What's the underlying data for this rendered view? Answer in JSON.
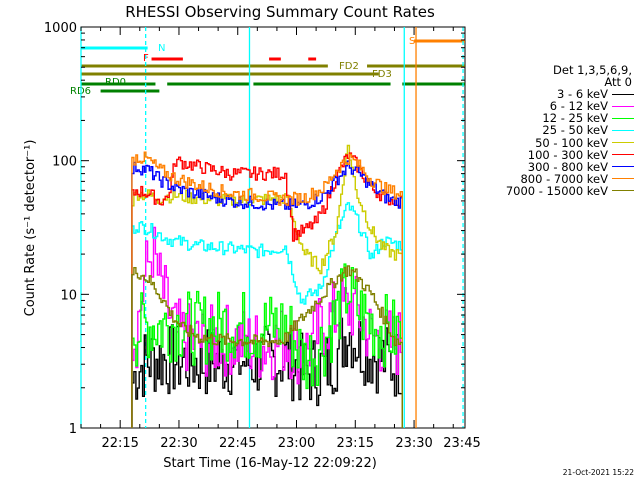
{
  "chart_data": {
    "type": "line",
    "title": "RHESSI Observing Summary Count Rates",
    "xlabel": "Start Time (16-May-12 22:09:22)",
    "ylabel": "Count Rate (s⁻¹ detector⁻¹)",
    "y_scale": "log",
    "ylim": [
      1,
      1000
    ],
    "y_ticks": [
      1,
      10,
      100,
      1000
    ],
    "y_tick_labels": [
      "1",
      "10",
      "100",
      "1000"
    ],
    "xlim_minutes": [
      -4,
      94
    ],
    "x_ticks_minutes": [
      6,
      21,
      36,
      51,
      66,
      81,
      96
    ],
    "x_tick_labels": [
      "22:15",
      "22:30",
      "22:45",
      "23:00",
      "23:15",
      "23:30",
      "23:45"
    ],
    "legend_header": [
      "Det 1,3,5,6,9,",
      "Att 0"
    ],
    "legend_position": "right",
    "series": [
      {
        "name": "3 - 6 keV",
        "color": "#000000",
        "x": [
          9,
          10,
          13,
          16,
          20,
          26,
          34,
          41,
          46,
          48,
          53,
          58,
          61,
          64,
          66,
          70,
          76,
          78
        ],
        "y": [
          2.2,
          2.7,
          3.2,
          3.3,
          3.2,
          3.1,
          3.2,
          3.1,
          3.2,
          3.3,
          2.6,
          2.8,
          3.5,
          5.5,
          4.5,
          3.6,
          3.0,
          3.2
        ]
      },
      {
        "name": "6 - 12 keV",
        "color": "#ff00ff",
        "x": [
          9,
          10,
          12,
          14,
          16,
          20,
          26,
          34,
          41,
          46,
          48,
          53,
          58,
          62,
          65,
          67,
          70,
          76,
          78
        ],
        "y": [
          4.8,
          5.2,
          13,
          22,
          12,
          5.0,
          4.3,
          4.6,
          4.1,
          4.3,
          4.6,
          3.6,
          6.0,
          7.5,
          8.0,
          7.0,
          4.8,
          4.2,
          4.6
        ]
      },
      {
        "name": "12 - 25 keV",
        "color": "#00ff00",
        "x": [
          9,
          10,
          13,
          16,
          20,
          26,
          34,
          41,
          46,
          48,
          53,
          58,
          61,
          64,
          66,
          70,
          76,
          78
        ],
        "y": [
          6.5,
          5.2,
          6.0,
          5.8,
          6.0,
          5.5,
          6.0,
          5.6,
          5.8,
          6.0,
          3.2,
          4.5,
          7.0,
          11,
          8.0,
          6.0,
          5.0,
          5.5
        ]
      },
      {
        "name": "25 - 50 keV",
        "color": "#00ffff",
        "x": [
          9,
          10,
          13,
          16,
          18,
          20,
          26,
          34,
          41,
          46,
          48,
          52,
          57,
          61,
          64,
          66,
          70,
          73,
          76,
          78
        ],
        "y": [
          30,
          33,
          31,
          28,
          26,
          25,
          23,
          22,
          21,
          22,
          23,
          9,
          11,
          28,
          46,
          38,
          19,
          25,
          24,
          23
        ]
      },
      {
        "name": "50 - 100 keV",
        "color": "#cccc00",
        "x": [
          9,
          10,
          13,
          16,
          18,
          20,
          26,
          34,
          41,
          46,
          48,
          53,
          57,
          61,
          64,
          66,
          70,
          73,
          76,
          78
        ],
        "y": [
          50,
          57,
          55,
          52,
          54,
          55,
          52,
          50,
          51,
          52,
          53,
          20,
          16,
          30,
          130,
          60,
          30,
          22,
          20,
          19
        ]
      },
      {
        "name": "100 - 300 keV",
        "color": "#ff0000",
        "x": [
          9,
          10,
          13,
          16,
          18,
          20,
          26,
          34,
          41,
          46,
          48,
          50,
          53,
          56,
          58,
          61,
          64,
          66,
          70,
          74,
          76,
          78
        ],
        "y": [
          55,
          60,
          57,
          50,
          53,
          100,
          90,
          80,
          80,
          80,
          80,
          28,
          30,
          35,
          45,
          75,
          110,
          95,
          62,
          52,
          51,
          50
        ]
      },
      {
        "name": "300 - 800 keV",
        "color": "#0000ff",
        "x": [
          9,
          10,
          13,
          16,
          20,
          26,
          34,
          41,
          46,
          48,
          53,
          58,
          61,
          64,
          66,
          70,
          74,
          76,
          78
        ],
        "y": [
          85,
          90,
          85,
          72,
          62,
          56,
          50,
          48,
          46,
          46,
          47,
          55,
          72,
          90,
          84,
          65,
          52,
          50,
          49
        ]
      },
      {
        "name": "800 - 7000 keV",
        "color": "#ff8000",
        "x": [
          9,
          10,
          13,
          16,
          20,
          26,
          34,
          41,
          46,
          48,
          53,
          58,
          61,
          64,
          66,
          70,
          74,
          76,
          78
        ],
        "y": [
          100,
          107,
          102,
          85,
          74,
          65,
          57,
          55,
          52,
          51,
          53,
          63,
          85,
          105,
          97,
          72,
          60,
          58,
          56
        ]
      },
      {
        "name": "7000 - 15000 keV",
        "color": "#808000",
        "x": [
          9,
          10,
          13,
          16,
          19,
          22,
          26,
          30,
          34,
          38,
          41,
          46,
          48,
          53,
          57,
          61,
          64,
          66,
          70,
          74,
          76,
          78
        ],
        "y": [
          14,
          15,
          13,
          10,
          7.0,
          5.5,
          4.8,
          4.6,
          4.5,
          4.5,
          4.4,
          4.5,
          4.7,
          7.0,
          9.5,
          13,
          15.5,
          14,
          10,
          6.0,
          4.5,
          4.4
        ]
      }
    ],
    "annotations": [
      {
        "text": "N",
        "color": "#00ffff",
        "bars": [
          [
            -4,
            13
          ]
        ]
      },
      {
        "text": "F",
        "color": "#ff0000",
        "bars": [
          [
            14,
            22
          ],
          [
            44,
            47
          ],
          [
            54,
            56
          ]
        ]
      },
      {
        "text": "S",
        "color": "#ff8000",
        "bars": [
          [
            81,
            94
          ]
        ]
      },
      {
        "text": "FD2",
        "color": "#808000",
        "bars": [
          [
            -4,
            59
          ],
          [
            69,
            94
          ]
        ]
      },
      {
        "text": "FD3",
        "color": "#808000",
        "bars": [
          [
            -4,
            72
          ]
        ]
      },
      {
        "text": "RD0",
        "color": "#008000",
        "bars": [
          [
            -4,
            15
          ],
          [
            18,
            39
          ],
          [
            40,
            75
          ],
          [
            78,
            94
          ]
        ]
      },
      {
        "text": "RD6",
        "color": "#008000",
        "bars": [
          [
            1,
            16
          ]
        ]
      }
    ],
    "vertical_lines": [
      {
        "x": [
          -4,
          12.5,
          78.5,
          93.5
        ],
        "color": "#00ffff",
        "dashed": [
          false,
          true,
          false,
          true
        ]
      },
      {
        "x": [
          81.5
        ],
        "color": "#ff8000",
        "dashed": [
          false
        ]
      },
      {
        "x": [
          39
        ],
        "color": "#00ffff",
        "dashed": [
          false
        ]
      }
    ]
  },
  "timestamp": "21-Oct-2021 15:22"
}
